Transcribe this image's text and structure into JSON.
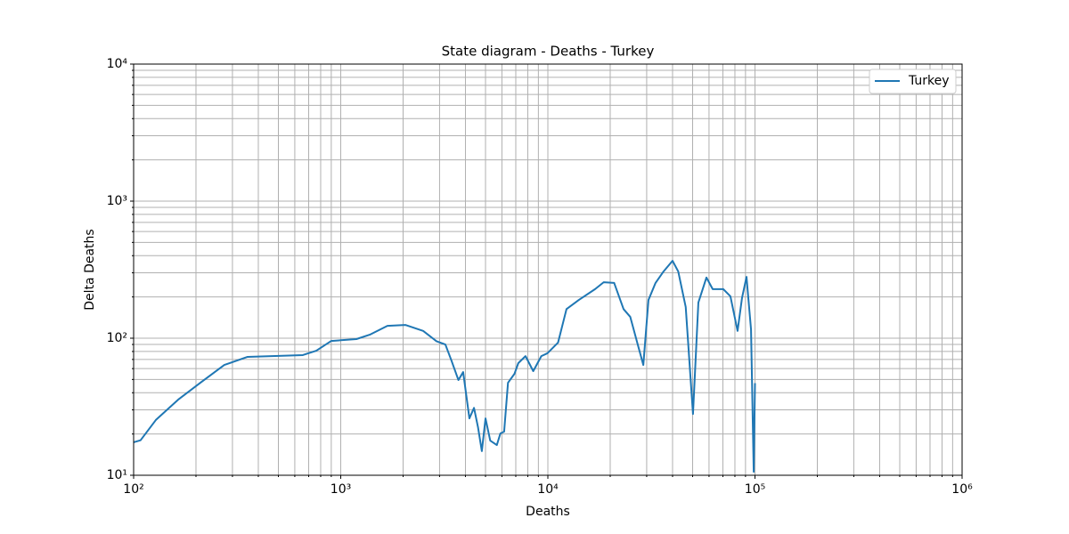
{
  "chart_data": {
    "type": "line",
    "title": "State diagram - Deaths - Turkey",
    "xlabel": "Deaths",
    "ylabel": "Delta Deaths",
    "xscale": "log",
    "yscale": "log",
    "grid": true,
    "legend": "upper right",
    "xlim": [
      100,
      1000000
    ],
    "ylim": [
      10,
      10000
    ],
    "xticks": [
      {
        "value": 100,
        "label": "10²"
      },
      {
        "value": 1000,
        "label": "10³"
      },
      {
        "value": 10000,
        "label": "10⁴"
      },
      {
        "value": 100000,
        "label": "10⁵"
      },
      {
        "value": 1000000,
        "label": "10⁶"
      }
    ],
    "yticks": [
      {
        "value": 10,
        "label": "10¹"
      },
      {
        "value": 100,
        "label": "10²"
      },
      {
        "value": 1000,
        "label": "10³"
      },
      {
        "value": 10000,
        "label": "10⁴"
      }
    ],
    "xminorticks": [
      200,
      300,
      400,
      500,
      600,
      700,
      800,
      900,
      2000,
      3000,
      4000,
      5000,
      6000,
      7000,
      8000,
      9000,
      20000,
      30000,
      40000,
      50000,
      60000,
      70000,
      80000,
      90000,
      200000,
      300000,
      400000,
      500000,
      600000,
      700000,
      800000,
      900000
    ],
    "yminorticks": [
      20,
      30,
      40,
      50,
      60,
      70,
      80,
      90,
      200,
      300,
      400,
      500,
      600,
      700,
      800,
      900,
      2000,
      3000,
      4000,
      5000,
      6000,
      7000,
      8000,
      9000
    ],
    "x": [
      100,
      108,
      128,
      164,
      210,
      274,
      355,
      656,
      762,
      900,
      1190,
      1380,
      1680,
      2050,
      2500,
      2900,
      3200,
      3420,
      3700,
      3900,
      4180,
      4400,
      4600,
      4800,
      5000,
      5270,
      5670,
      5900,
      6150,
      6420,
      6900,
      7200,
      7800,
      8500,
      9300,
      9950,
      11200,
      12300,
      14100,
      16900,
      18600,
      20900,
      23200,
      25000,
      27000,
      28900,
      30600,
      33100,
      36200,
      40000,
      42600,
      46300,
      50200,
      53300,
      58300,
      62500,
      70300,
      76100,
      82400,
      86600,
      91000,
      95700,
      98600,
      100000
    ],
    "series": [
      {
        "name": "Turkey",
        "color": "#1f77b4",
        "values": [
          17.4,
          18,
          25.3,
          35.6,
          47.3,
          63.8,
          73.1,
          75.3,
          81,
          95.5,
          98.5,
          106,
          123,
          125,
          113,
          95,
          90,
          69,
          49.5,
          56.6,
          26,
          31,
          22.4,
          15,
          26,
          17.9,
          16.6,
          20.2,
          20.8,
          47.3,
          55,
          65.8,
          74,
          57.5,
          74,
          77.6,
          92.9,
          163,
          190,
          228,
          256,
          253,
          163,
          143,
          93,
          63.8,
          190,
          253,
          307,
          367,
          307,
          169,
          28,
          182,
          277,
          228,
          228,
          202,
          113,
          197,
          280,
          116,
          10.6,
          47
        ]
      }
    ]
  }
}
